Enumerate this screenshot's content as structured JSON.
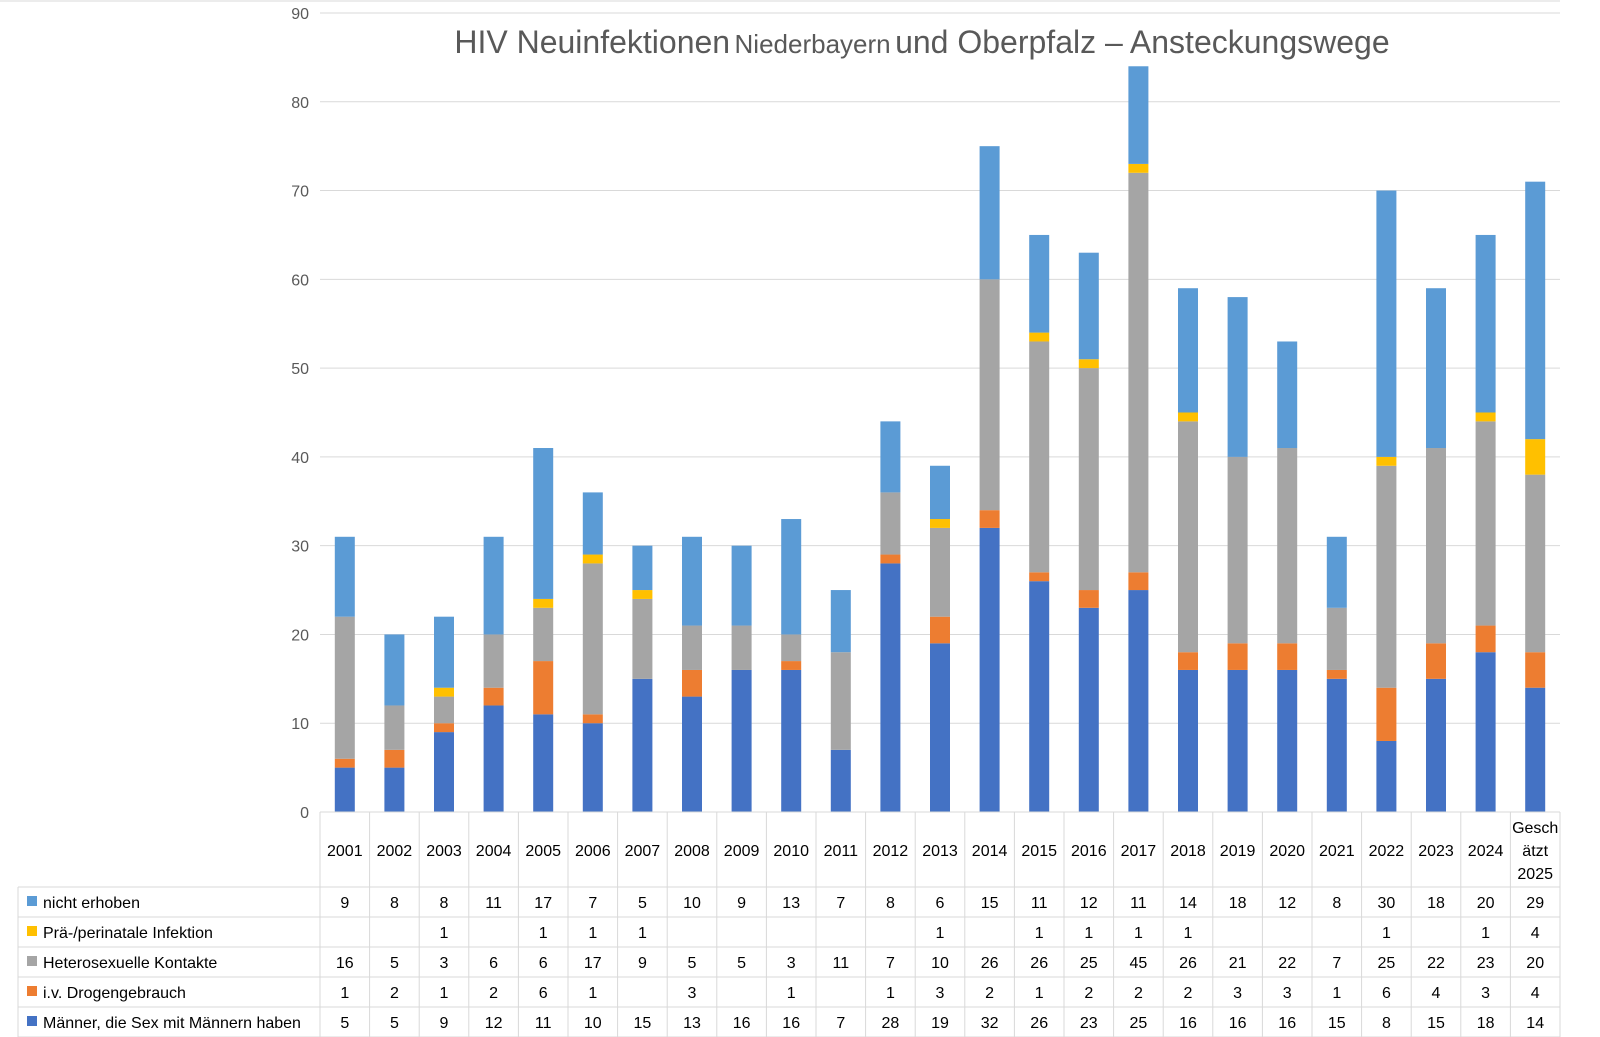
{
  "chart_data": {
    "type": "bar",
    "stacked": true,
    "title_main": "HIV Neuinfektionen",
    "title_region": "Niederbayern",
    "title_rest": "und Oberpfalz – Ansteckungswege",
    "ylim": [
      0,
      90
    ],
    "yticks": [
      "0",
      "10",
      "20",
      "30",
      "40",
      "50",
      "60",
      "70",
      "80",
      "90"
    ],
    "grid": true,
    "categories": [
      [
        "2001"
      ],
      [
        "2002"
      ],
      [
        "2003"
      ],
      [
        "2004"
      ],
      [
        "2005"
      ],
      [
        "2006"
      ],
      [
        "2007"
      ],
      [
        "2008"
      ],
      [
        "2009"
      ],
      [
        "2010"
      ],
      [
        "2011"
      ],
      [
        "2012"
      ],
      [
        "2013"
      ],
      [
        "2014"
      ],
      [
        "2015"
      ],
      [
        "2016"
      ],
      [
        "2017"
      ],
      [
        "2018"
      ],
      [
        "2019"
      ],
      [
        "2020"
      ],
      [
        "2021"
      ],
      [
        "2022"
      ],
      [
        "2023"
      ],
      [
        "2024"
      ],
      [
        "Gesch",
        "ätzt",
        "2025"
      ]
    ],
    "series": [
      {
        "name": "Männer, die Sex mit Männern haben",
        "color": "#4472C4",
        "values": [
          5,
          5,
          9,
          12,
          11,
          10,
          15,
          13,
          16,
          16,
          7,
          28,
          19,
          32,
          26,
          23,
          25,
          16,
          16,
          16,
          15,
          8,
          15,
          18,
          14
        ]
      },
      {
        "name": "i.v. Drogengebrauch",
        "color": "#ED7D31",
        "values": [
          1,
          2,
          1,
          2,
          6,
          1,
          null,
          3,
          null,
          1,
          null,
          1,
          3,
          2,
          1,
          2,
          2,
          2,
          3,
          3,
          1,
          6,
          4,
          3,
          4
        ]
      },
      {
        "name": "Heterosexuelle Kontakte",
        "color": "#A5A5A5",
        "values": [
          16,
          5,
          3,
          6,
          6,
          17,
          9,
          5,
          5,
          3,
          11,
          7,
          10,
          26,
          26,
          25,
          45,
          26,
          21,
          22,
          7,
          25,
          22,
          23,
          20
        ]
      },
      {
        "name": "Prä-/perinatale Infektion",
        "color": "#FFC000",
        "values": [
          null,
          null,
          1,
          null,
          1,
          1,
          1,
          null,
          null,
          null,
          null,
          null,
          1,
          null,
          1,
          1,
          1,
          1,
          null,
          null,
          null,
          1,
          null,
          1,
          4
        ]
      },
      {
        "name": "nicht erhoben",
        "color": "#5B9BD5",
        "values": [
          9,
          8,
          8,
          11,
          17,
          7,
          5,
          10,
          9,
          13,
          7,
          8,
          6,
          15,
          11,
          12,
          11,
          14,
          18,
          12,
          8,
          30,
          18,
          20,
          29
        ]
      }
    ]
  }
}
